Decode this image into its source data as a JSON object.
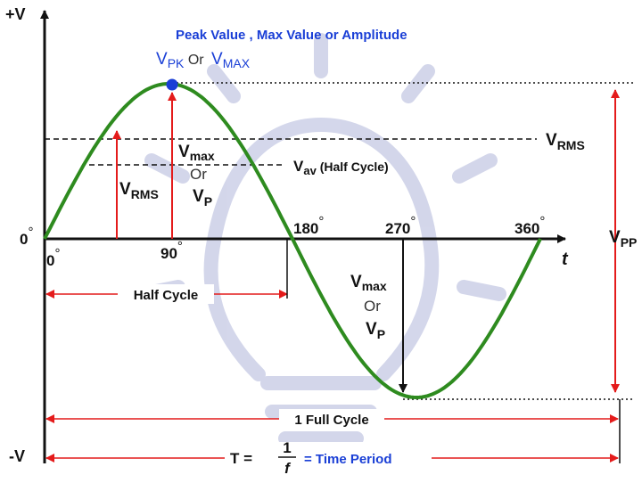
{
  "axis": {
    "y_pos_label": "+V",
    "y_neg_label": "-V",
    "x_label": "t"
  },
  "angles": {
    "origin_left": "0",
    "zero": "0",
    "ninety": "90",
    "one_eighty": "180",
    "two_seventy": "270",
    "three_sixty": "360",
    "degree_mark": "°"
  },
  "peak": {
    "title": "Peak Value , Max Value or Amplitude",
    "v": "V",
    "pk_sub": "PK",
    "or_text": " Or ",
    "max_sub": "MAX"
  },
  "rms_right": {
    "v": "V",
    "sub": "RMS"
  },
  "average": {
    "v": "V",
    "sub": "av",
    "suffix": " (Half Cycle)"
  },
  "rms_arrow": {
    "v": "V",
    "sub": "RMS"
  },
  "vmax_top": {
    "v": "V",
    "sub": "max",
    "or_text": "Or",
    "vp": "V",
    "vp_sub": "P"
  },
  "vmax_bottom": {
    "v": "V",
    "sub": "max",
    "or_text": "Or",
    "vp": "V",
    "vp_sub": "P"
  },
  "vpp": {
    "v": "V",
    "sub": "PP"
  },
  "half_cycle": "Half Cycle",
  "full_cycle": "1 Full Cycle",
  "period": {
    "t_eq": "T =",
    "numerator": "1",
    "denominator": "f",
    "suffix": "= Time Period"
  },
  "colors": {
    "wave": "#2e8b1f",
    "red_arrow": "#e41b1b",
    "peak_dot": "#1a3fd6",
    "blue_text": "#1a3fd6",
    "axis": "#111111",
    "bulb": "#c9cde6"
  }
}
